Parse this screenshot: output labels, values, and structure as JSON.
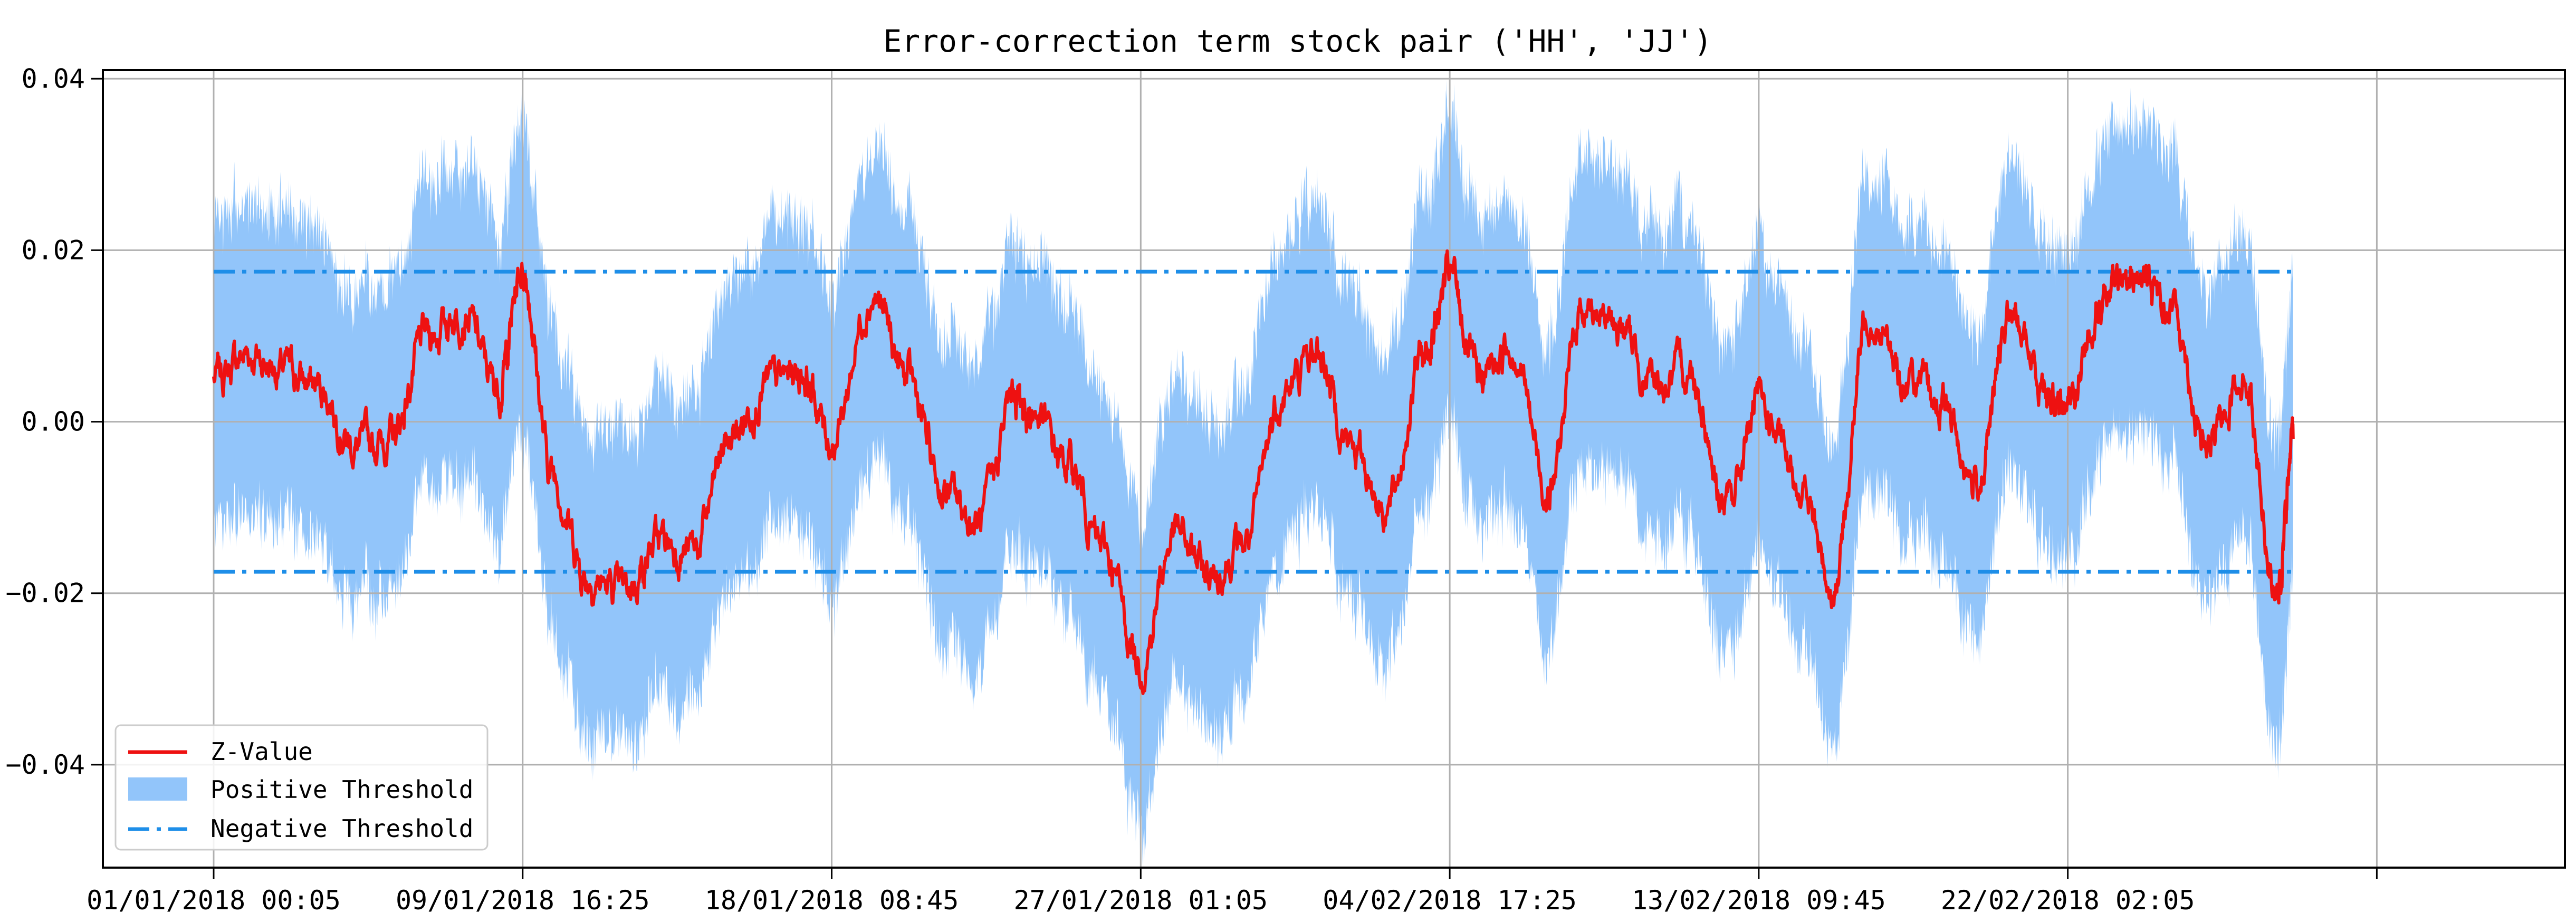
{
  "chart_data": {
    "type": "line",
    "title": "Error-correction term stock pair ('HH', 'JJ')",
    "xlabel": "",
    "ylabel": "",
    "x_ticks": [
      "01/01/2018 00:05",
      "09/01/2018 16:25",
      "18/01/2018 08:45",
      "27/01/2018 01:05",
      "04/02/2018 17:25",
      "13/02/2018 09:45",
      "22/02/2018 02:05"
    ],
    "y_ticks": [
      "−0.04",
      "−0.02",
      "0.00",
      "0.02",
      "0.04"
    ],
    "y_tick_values": [
      -0.04,
      -0.02,
      0.0,
      0.02,
      0.04
    ],
    "ylim": [
      -0.052,
      0.041
    ],
    "x_range": [
      "01/01/2018 00:05",
      "07/03/2018 22:45"
    ],
    "x_data_end": "28/02/2018 10:00",
    "grid": true,
    "legend_position": "lower-left",
    "legend": [
      "Z-Value",
      "Positive Threshold",
      "Negative Threshold"
    ],
    "threshold_lines": [
      0.0175,
      -0.0175
    ],
    "band_halfwidth": 0.0175,
    "colors": {
      "z_value": "#ee1111",
      "band": "#92c5fa",
      "threshold": "#1e8ee8",
      "grid": "#b0b0b0",
      "axis": "#000000"
    },
    "series": [
      {
        "name": "Z-Value",
        "x": [
          "01/01/2018 00:05",
          "02/01/2018 00:00",
          "03/01/2018 00:00",
          "04/01/2018 00:00",
          "05/01/2018 00:00",
          "06/01/2018 00:00",
          "07/01/2018 00:00",
          "08/01/2018 00:00",
          "09/01/2018 00:00",
          "09/01/2018 16:25",
          "10/01/2018 12:00",
          "11/01/2018 12:00",
          "12/01/2018 12:00",
          "13/01/2018 12:00",
          "14/01/2018 12:00",
          "15/01/2018 12:00",
          "16/01/2018 12:00",
          "17/01/2018 12:00",
          "18/01/2018 08:45",
          "19/01/2018 12:00",
          "20/01/2018 12:00",
          "21/01/2018 12:00",
          "22/01/2018 12:00",
          "23/01/2018 12:00",
          "24/01/2018 00:00",
          "25/01/2018 00:00",
          "26/01/2018 00:00",
          "27/01/2018 01:05",
          "28/01/2018 00:00",
          "29/01/2018 00:00",
          "30/01/2018 00:00",
          "31/01/2018 00:00",
          "01/02/2018 00:00",
          "02/02/2018 00:00",
          "03/02/2018 00:00",
          "04/02/2018 00:00",
          "04/02/2018 17:25",
          "05/02/2018 12:00",
          "06/02/2018 12:00",
          "07/02/2018 12:00",
          "08/02/2018 12:00",
          "09/02/2018 12:00",
          "10/02/2018 12:00",
          "11/02/2018 12:00",
          "12/02/2018 12:00",
          "13/02/2018 09:45",
          "14/02/2018 12:00",
          "15/02/2018 12:00",
          "16/02/2018 12:00",
          "17/02/2018 12:00",
          "18/02/2018 12:00",
          "19/02/2018 12:00",
          "20/02/2018 12:00",
          "21/02/2018 12:00",
          "22/02/2018 02:05",
          "23/02/2018 00:00",
          "24/02/2018 00:00",
          "25/02/2018 00:00",
          "26/02/2018 00:00",
          "27/02/2018 00:00",
          "28/02/2018 00:00",
          "28/02/2018 10:00"
        ],
        "values": [
          0.005,
          0.008,
          0.006,
          0.004,
          -0.003,
          -0.002,
          0.01,
          0.013,
          0.004,
          0.018,
          -0.006,
          -0.018,
          -0.02,
          -0.014,
          -0.015,
          -0.002,
          0.004,
          0.006,
          -0.002,
          0.015,
          0.005,
          -0.008,
          -0.012,
          0.003,
          0.001,
          -0.005,
          -0.015,
          -0.028,
          -0.013,
          -0.018,
          -0.014,
          0.003,
          0.008,
          -0.003,
          -0.01,
          0.008,
          0.017,
          0.005,
          0.009,
          -0.008,
          0.014,
          0.011,
          0.004,
          0.006,
          -0.01,
          0.002,
          -0.007,
          -0.019,
          0.013,
          0.005,
          0.002,
          -0.007,
          0.012,
          0.004,
          0.002,
          0.014,
          0.017,
          0.014,
          -0.003,
          0.006,
          -0.02,
          -0.002
        ]
      }
    ]
  }
}
